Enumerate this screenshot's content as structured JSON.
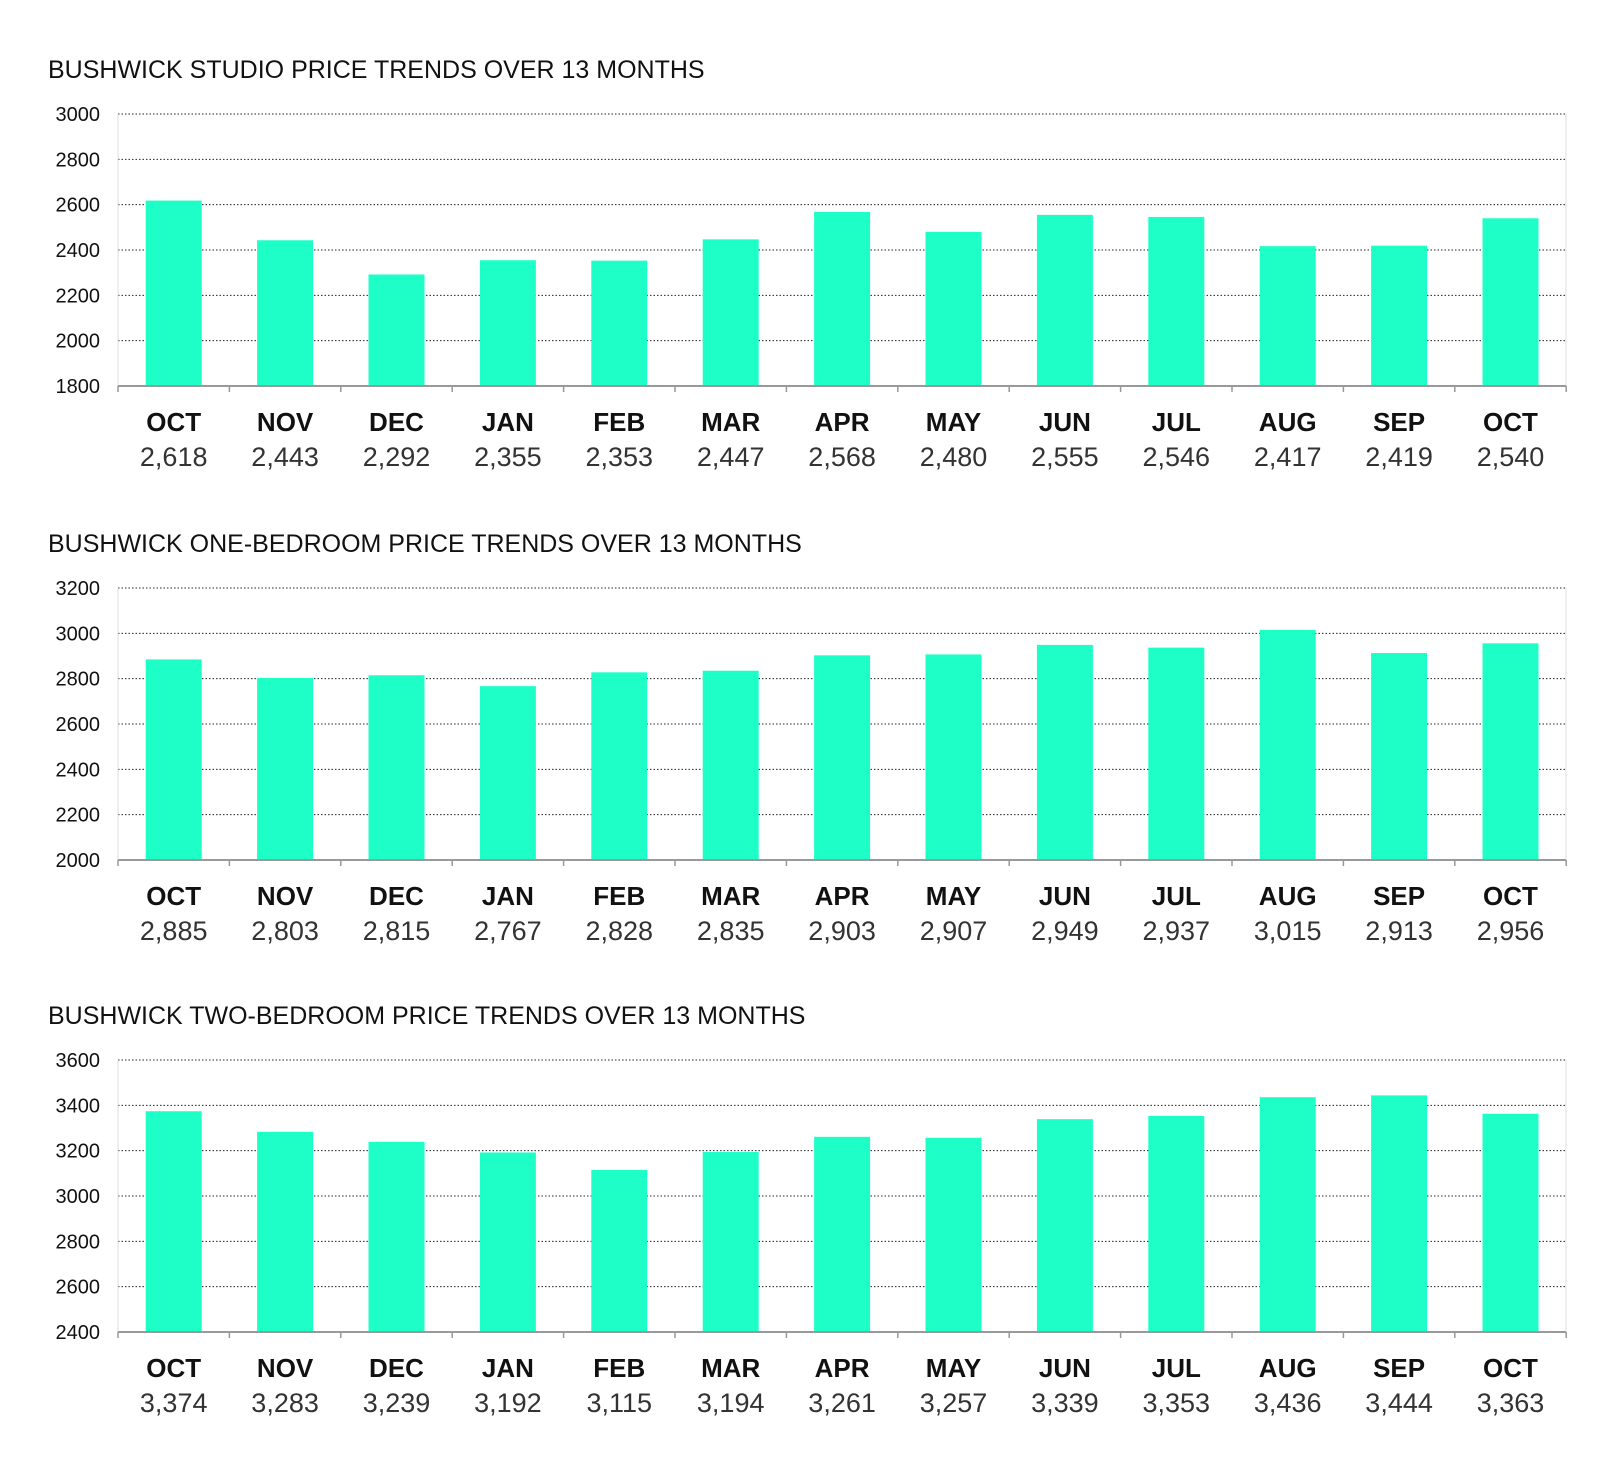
{
  "bar_color": "#1effc8",
  "chart_data": [
    {
      "type": "bar",
      "title": "BUSHWICK STUDIO PRICE TRENDS OVER 13 MONTHS",
      "categories": [
        "OCT",
        "NOV",
        "DEC",
        "JAN",
        "FEB",
        "MAR",
        "APR",
        "MAY",
        "JUN",
        "JUL",
        "AUG",
        "SEP",
        "OCT"
      ],
      "values": [
        2618,
        2443,
        2292,
        2355,
        2353,
        2447,
        2568,
        2480,
        2555,
        2546,
        2417,
        2419,
        2540
      ],
      "value_labels": [
        "2,618",
        "2,443",
        "2,292",
        "2,355",
        "2,353",
        "2,447",
        "2,568",
        "2,480",
        "2,555",
        "2,546",
        "2,417",
        "2,419",
        "2,540"
      ],
      "yticks": [
        "3000",
        "2800",
        "2600",
        "2400",
        "2200",
        "2000",
        "1800"
      ],
      "ylim": [
        1800,
        3000
      ],
      "grid": true
    },
    {
      "type": "bar",
      "title": "BUSHWICK ONE-BEDROOM PRICE TRENDS OVER 13 MONTHS",
      "categories": [
        "OCT",
        "NOV",
        "DEC",
        "JAN",
        "FEB",
        "MAR",
        "APR",
        "MAY",
        "JUN",
        "JUL",
        "AUG",
        "SEP",
        "OCT"
      ],
      "values": [
        2885,
        2803,
        2815,
        2767,
        2828,
        2835,
        2903,
        2907,
        2949,
        2937,
        3015,
        2913,
        2956
      ],
      "value_labels": [
        "2,885",
        "2,803",
        "2,815",
        "2,767",
        "2,828",
        "2,835",
        "2,903",
        "2,907",
        "2,949",
        "2,937",
        "3,015",
        "2,913",
        "2,956"
      ],
      "yticks": [
        "3200",
        "3000",
        "2800",
        "2600",
        "2400",
        "2200",
        "2000"
      ],
      "ylim": [
        2000,
        3200
      ],
      "grid": true
    },
    {
      "type": "bar",
      "title": "BUSHWICK TWO-BEDROOM PRICE TRENDS OVER 13 MONTHS",
      "categories": [
        "OCT",
        "NOV",
        "DEC",
        "JAN",
        "FEB",
        "MAR",
        "APR",
        "MAY",
        "JUN",
        "JUL",
        "AUG",
        "SEP",
        "OCT"
      ],
      "values": [
        3374,
        3283,
        3239,
        3192,
        3115,
        3194,
        3261,
        3257,
        3339,
        3353,
        3436,
        3444,
        3363
      ],
      "value_labels": [
        "3,374",
        "3,283",
        "3,239",
        "3,192",
        "3,115",
        "3,194",
        "3,261",
        "3,257",
        "3,339",
        "3,353",
        "3,436",
        "3,444",
        "3,363"
      ],
      "yticks": [
        "3600",
        "3400",
        "3200",
        "3000",
        "2800",
        "2600",
        "2400"
      ],
      "ylim": [
        2400,
        3600
      ],
      "grid": true
    }
  ]
}
